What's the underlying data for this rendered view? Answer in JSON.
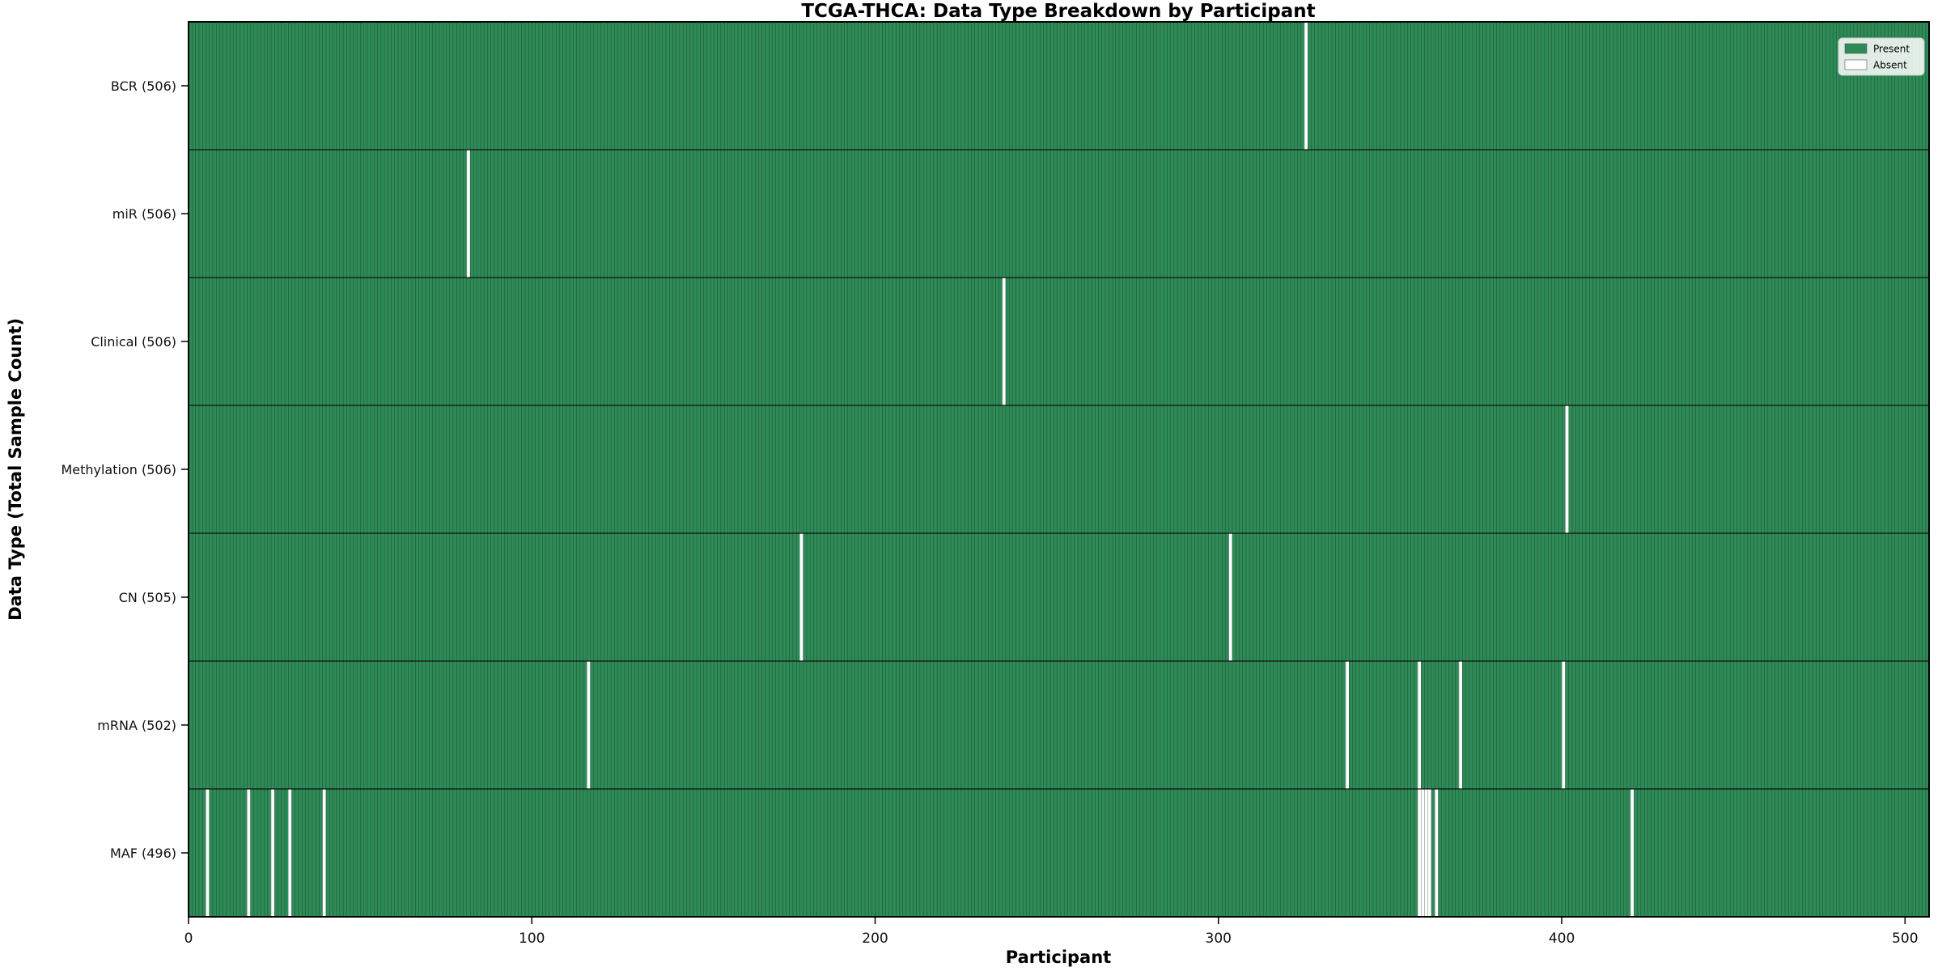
{
  "chart_data": {
    "type": "heatmap",
    "title": "TCGA-THCA: Data Type Breakdown by Participant",
    "xlabel": "Participant",
    "ylabel": "Data Type (Total Sample Count)",
    "x_ticks": [
      0,
      100,
      200,
      300,
      400,
      500
    ],
    "x_range": [
      0,
      507
    ],
    "n_participants": 507,
    "grid": false,
    "legend_position": "upper right",
    "legend": [
      {
        "label": "Present",
        "color": "#2e8b57"
      },
      {
        "label": "Absent",
        "color": "#ffffff"
      }
    ],
    "colors": {
      "present": "#2e8b57",
      "absent": "#ffffff",
      "bar_edge": "rgba(0,0,0,0.5)",
      "row_border": "#111111"
    },
    "rows": [
      {
        "name": "BCR",
        "label": "BCR (506)",
        "count": 506,
        "absent": [
          325
        ]
      },
      {
        "name": "miR",
        "label": "miR (506)",
        "count": 506,
        "absent": [
          81
        ]
      },
      {
        "name": "Clinical",
        "label": "Clinical (506)",
        "count": 506,
        "absent": [
          237
        ]
      },
      {
        "name": "Methylation",
        "label": "Methylation (506)",
        "count": 506,
        "absent": [
          401
        ]
      },
      {
        "name": "CN",
        "label": "CN (505)",
        "count": 505,
        "absent": [
          178,
          303
        ]
      },
      {
        "name": "mRNA",
        "label": "mRNA (502)",
        "count": 502,
        "absent": [
          116,
          337,
          358,
          370,
          400
        ]
      },
      {
        "name": "MAF",
        "label": "MAF (496)",
        "count": 496,
        "absent": [
          5,
          17,
          24,
          29,
          39,
          358,
          359,
          360,
          361,
          363,
          420
        ]
      }
    ]
  }
}
